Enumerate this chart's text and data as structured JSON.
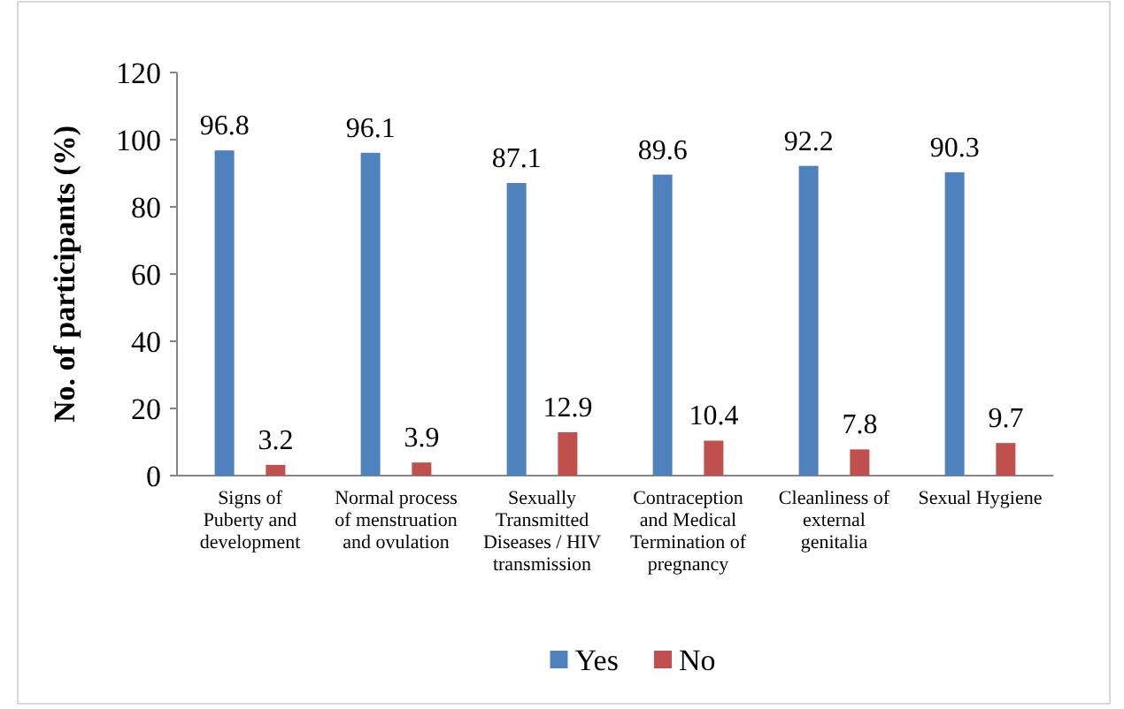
{
  "chart_data": {
    "type": "bar",
    "ylabel": "No. of participants (%)",
    "categories": [
      "Signs of Puberty and development",
      "Normal process of menstruation and ovulation",
      "Sexually Transmitted Diseases / HIV transmission",
      "Contraception and Medical Termination of pregnancy",
      "Cleanliness of external genitalia",
      "Sexual Hygiene"
    ],
    "series": [
      {
        "name": "Yes",
        "color": "#4f81bd",
        "values": [
          96.8,
          96.1,
          87.1,
          89.6,
          92.2,
          90.3
        ]
      },
      {
        "name": "No",
        "color": "#c0504d",
        "values": [
          3.2,
          3.9,
          12.9,
          10.4,
          7.8,
          9.7
        ]
      }
    ],
    "ylim": [
      0,
      120
    ],
    "yticks": [
      0,
      20,
      40,
      60,
      80,
      100,
      120
    ],
    "data_labels": true,
    "legend": "bottom",
    "grid": false
  }
}
